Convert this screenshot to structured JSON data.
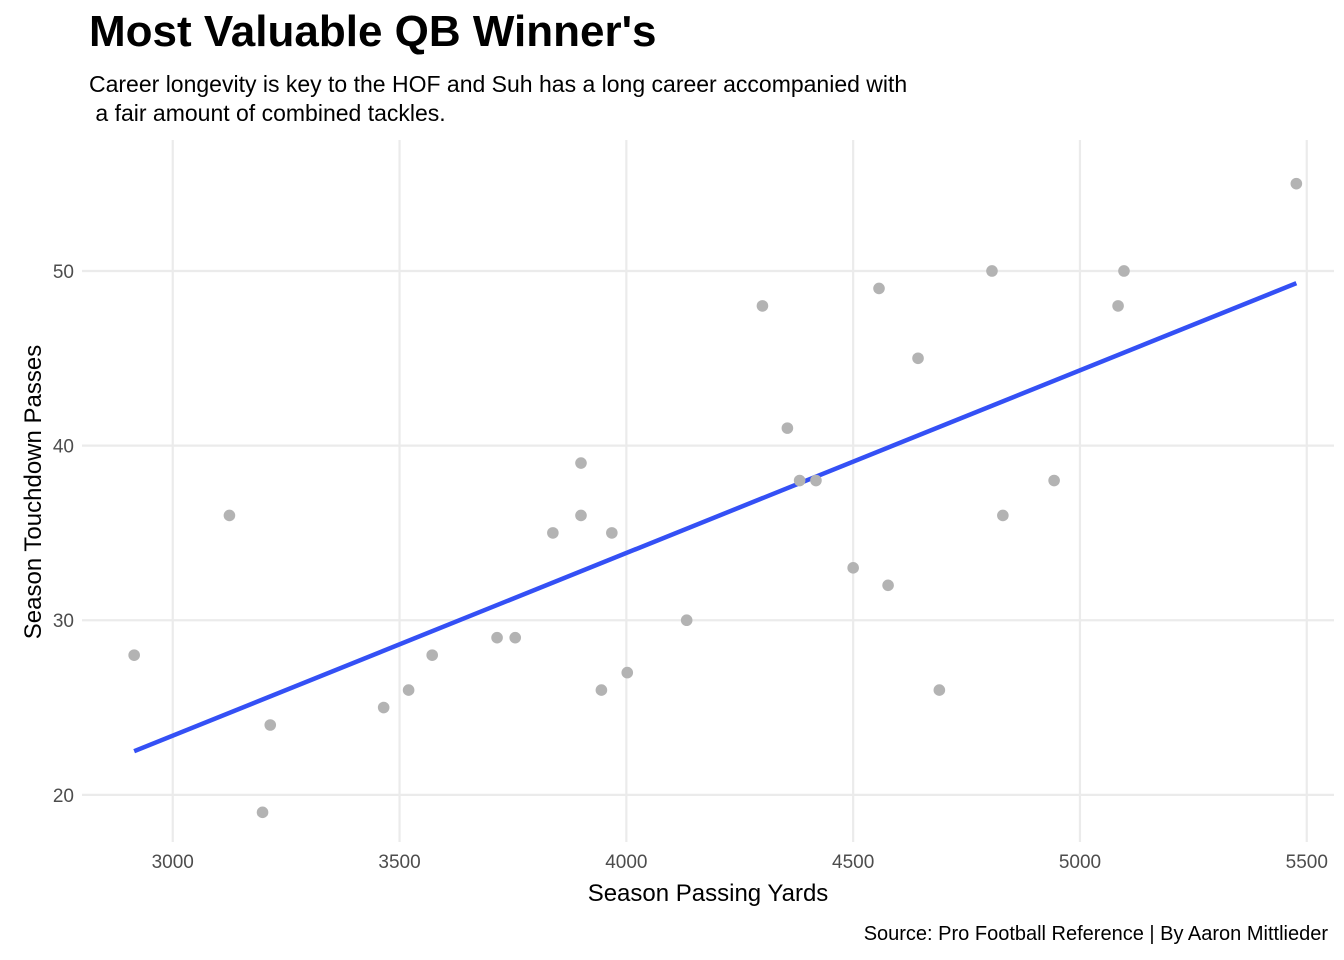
{
  "chart_data": {
    "type": "scatter",
    "title": "Most Valuable QB Winner's",
    "subtitle": "Career longevity is key to the HOF and Suh has a long career accompanied with\n a fair amount of combined tackles.",
    "caption": "Source: Pro Football Reference | By Aaron Mittlieder",
    "xlabel": "Season Passing Yards",
    "ylabel": "Season Touchdown Passes",
    "xlim": [
      2800,
      5560
    ],
    "ylim": [
      17.3,
      57.5
    ],
    "x_ticks": [
      3000,
      3500,
      4000,
      4500,
      5000,
      5500
    ],
    "y_ticks": [
      20,
      30,
      40,
      50
    ],
    "grid": true,
    "legend": "none",
    "colors": {
      "points": "#b3b3b3",
      "trend_line": "#3450f5",
      "grid": "#ebebeb"
    },
    "points": [
      {
        "x": 2915,
        "y": 28
      },
      {
        "x": 3125,
        "y": 36
      },
      {
        "x": 3198,
        "y": 19
      },
      {
        "x": 3215,
        "y": 24
      },
      {
        "x": 3465,
        "y": 25
      },
      {
        "x": 3520,
        "y": 26
      },
      {
        "x": 3572,
        "y": 28
      },
      {
        "x": 3715,
        "y": 29
      },
      {
        "x": 3755,
        "y": 29
      },
      {
        "x": 3838,
        "y": 35
      },
      {
        "x": 3900,
        "y": 39
      },
      {
        "x": 3900,
        "y": 36
      },
      {
        "x": 3945,
        "y": 26
      },
      {
        "x": 3968,
        "y": 35
      },
      {
        "x": 4002,
        "y": 27
      },
      {
        "x": 4133,
        "y": 30
      },
      {
        "x": 4300,
        "y": 48
      },
      {
        "x": 4355,
        "y": 41
      },
      {
        "x": 4382,
        "y": 38
      },
      {
        "x": 4418,
        "y": 38
      },
      {
        "x": 4500,
        "y": 33
      },
      {
        "x": 4557,
        "y": 49
      },
      {
        "x": 4577,
        "y": 32
      },
      {
        "x": 4643,
        "y": 45
      },
      {
        "x": 4690,
        "y": 26
      },
      {
        "x": 4806,
        "y": 50
      },
      {
        "x": 4830,
        "y": 36
      },
      {
        "x": 4943,
        "y": 38
      },
      {
        "x": 5084,
        "y": 48
      },
      {
        "x": 5097,
        "y": 50
      },
      {
        "x": 5477,
        "y": 55
      }
    ],
    "trend_line": {
      "x": [
        2915,
        5477
      ],
      "y": [
        22.5,
        49.3
      ]
    }
  }
}
